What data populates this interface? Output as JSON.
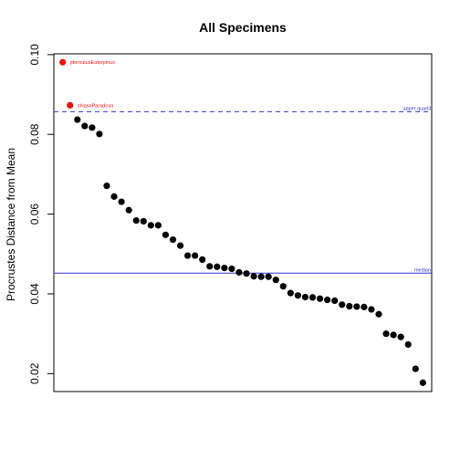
{
  "chart_data": {
    "type": "scatter",
    "title": "All Specimens",
    "xlabel": "",
    "ylabel": "Procrustes Distance from Mean",
    "ylim": [
      0.0155,
      0.1002
    ],
    "xlim": [
      -0.2,
      51.2
    ],
    "y_ticks": [
      0.02,
      0.04,
      0.06,
      0.08,
      0.1
    ],
    "y_tick_labels": [
      "0.02",
      "0.04",
      "0.06",
      "0.08",
      "0.10"
    ],
    "x_axis_shown": false,
    "grid": false,
    "point_color": "#000000",
    "highlight_color": "#ee1111",
    "series": [
      {
        "values": [
          0.0981,
          0.0873,
          0.0837,
          0.0821,
          0.0817,
          0.0801,
          0.0671,
          0.0644,
          0.0631,
          0.061,
          0.0584,
          0.0582,
          0.0572,
          0.0572,
          0.0548,
          0.0536,
          0.0521,
          0.0496,
          0.0496,
          0.0486,
          0.0469,
          0.0468,
          0.0465,
          0.0463,
          0.0454,
          0.0451,
          0.0444,
          0.0443,
          0.0443,
          0.0435,
          0.0419,
          0.0402,
          0.0396,
          0.0392,
          0.0391,
          0.0388,
          0.0385,
          0.0383,
          0.0373,
          0.0369,
          0.0368,
          0.0367,
          0.0361,
          0.0349,
          0.03,
          0.0297,
          0.0292,
          0.0273,
          0.0212,
          0.0177
        ]
      }
    ],
    "highlighted_points": [
      {
        "index": 0,
        "label": "pteroutusEuterpinus"
      },
      {
        "index": 1,
        "label": "chiasaParadoxa"
      }
    ],
    "reference_lines": [
      {
        "name": "upper quartile",
        "label": "upper quartil",
        "value": 0.0857,
        "style": "dashed",
        "color": "#3333cc"
      },
      {
        "name": "median",
        "label": "median",
        "value": 0.0452,
        "style": "solid",
        "color": "#3333cc"
      }
    ]
  }
}
